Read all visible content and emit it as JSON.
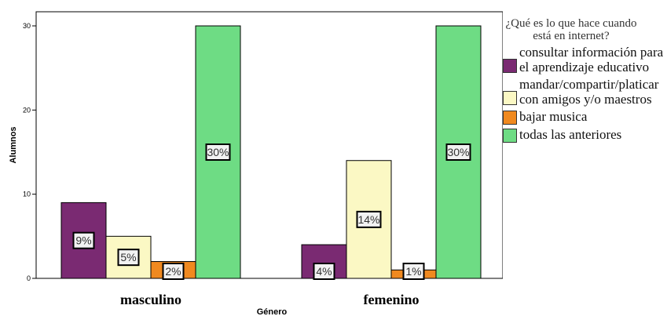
{
  "chart_data": {
    "type": "bar",
    "xlabel": "Género",
    "ylabel": "Alumnos",
    "ylim": [
      0,
      30
    ],
    "yticks": [
      0,
      10,
      20,
      30
    ],
    "categories": [
      "masculino",
      "femenino"
    ],
    "legend_title": "¿Qué es lo que hace cuando está en internet?",
    "legend_position": "right",
    "series": [
      {
        "name": "consultar información para el aprendizaje educativo",
        "color": "#7a2a72",
        "values": [
          9,
          4
        ],
        "labels": [
          "9%",
          "4%"
        ]
      },
      {
        "name": "mandar/compartir/platicar con amigos y/o maestros",
        "color": "#fbf8c4",
        "values": [
          5,
          14
        ],
        "labels": [
          "5%",
          "14%"
        ]
      },
      {
        "name": "bajar musica",
        "color": "#f0891f",
        "values": [
          2,
          1
        ],
        "labels": [
          "2%",
          "1%"
        ]
      },
      {
        "name": "todas las anteriores",
        "color": "#6edc84",
        "values": [
          30,
          30
        ],
        "labels": [
          "30%",
          "30%"
        ]
      }
    ]
  }
}
